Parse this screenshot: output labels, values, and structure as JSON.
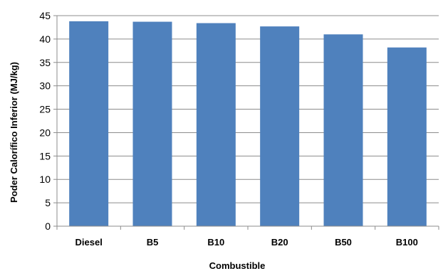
{
  "chart_data": {
    "type": "bar",
    "categories": [
      "Diesel",
      "B5",
      "B10",
      "B20",
      "B50",
      "B100"
    ],
    "values": [
      43.8,
      43.7,
      43.4,
      42.7,
      41.0,
      38.2
    ],
    "xlabel": "Combustible",
    "ylabel": "Poder Calorífico Inferior (MJ/kg)",
    "ylim": [
      0,
      45
    ],
    "yticks": [
      0,
      5,
      10,
      15,
      20,
      25,
      30,
      35,
      40,
      45
    ],
    "grid": true,
    "legend": "none",
    "colors": {
      "bar": "#4f81bd",
      "grid": "#8c8c8c",
      "axis": "#8c8c8c"
    }
  }
}
